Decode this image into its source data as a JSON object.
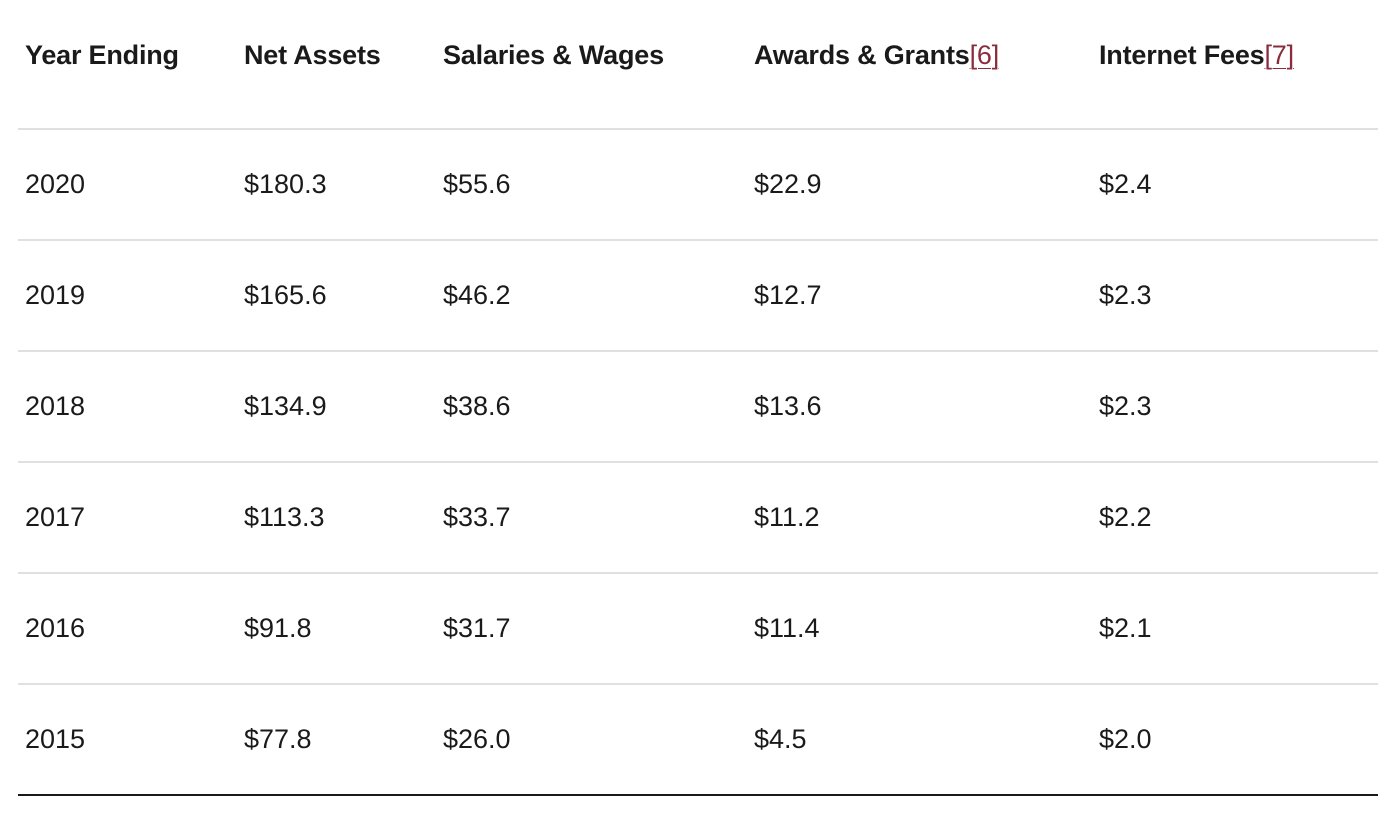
{
  "table": {
    "headers": [
      {
        "label": "Year Ending",
        "footnote": ""
      },
      {
        "label": "Net Assets",
        "footnote": ""
      },
      {
        "label": "Salaries & Wages",
        "footnote": ""
      },
      {
        "label": "Awards & Grants",
        "footnote": "[6]"
      },
      {
        "label": "Internet Fees",
        "footnote": "[7]"
      }
    ],
    "rows": [
      [
        "2020",
        "$180.3",
        "$55.6",
        "$22.9",
        "$2.4"
      ],
      [
        "2019",
        "$165.6",
        "$46.2",
        "$12.7",
        "$2.3"
      ],
      [
        "2018",
        "$134.9",
        "$38.6",
        "$13.6",
        "$2.3"
      ],
      [
        "2017",
        "$113.3",
        "$33.7",
        "$11.2",
        "$2.2"
      ],
      [
        "2016",
        "$91.8",
        "$31.7",
        "$11.4",
        "$2.1"
      ],
      [
        "2015",
        "$77.8",
        "$26.0",
        "$4.5",
        "$2.0"
      ]
    ]
  },
  "colors": {
    "text": "#1a1a1a",
    "footnote_link": "#8a2c3e",
    "row_divider": "#e0e0e0",
    "table_bottom_rule": "#1a1a1a"
  }
}
